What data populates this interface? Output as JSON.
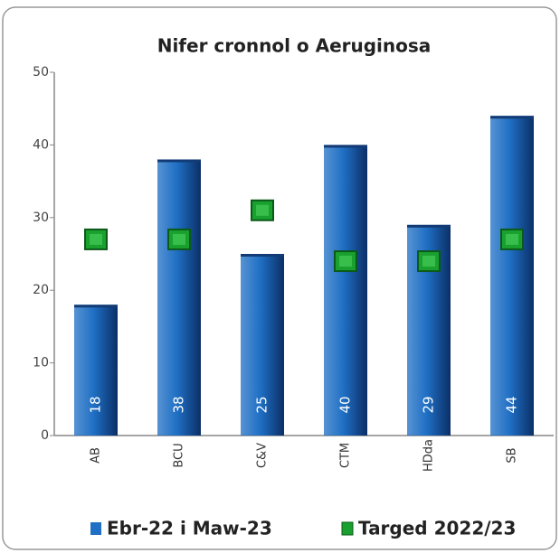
{
  "chart_data": {
    "type": "bar",
    "title": "Nifer cronnol o Aeruginosa",
    "categories": [
      "AB",
      "BCU",
      "C&V",
      "CTM",
      "HDda",
      "SB"
    ],
    "series": [
      {
        "name": "Ebr-22 i Maw-23",
        "color": "#1f6fc4",
        "values": [
          18,
          38,
          25,
          40,
          29,
          44
        ]
      },
      {
        "name": "Targed 2022/23",
        "color": "#19a02f",
        "marker": "square",
        "values": [
          27,
          27,
          31,
          24,
          24,
          27
        ]
      }
    ],
    "ylim": [
      0,
      50
    ],
    "yticks": [
      0,
      10,
      20,
      30,
      40,
      50
    ],
    "grid": false,
    "data_labels": true,
    "legend": "bottom"
  }
}
